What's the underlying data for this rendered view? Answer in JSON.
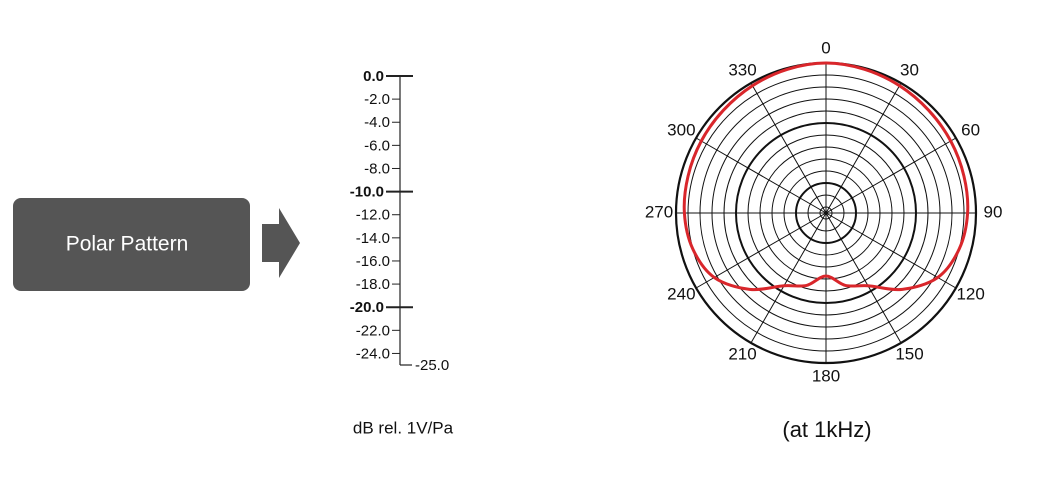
{
  "label": "Polar Pattern",
  "chart_data": {
    "type": "polar",
    "r_label": "dB rel. 1V/Pa",
    "note": "(at 1kHz)",
    "rlim": [
      -25,
      0
    ],
    "rticks": [
      {
        "value": 0,
        "label": "0.0"
      },
      {
        "value": -2,
        "label": "-2.0"
      },
      {
        "value": -4,
        "label": "-4.0"
      },
      {
        "value": -6,
        "label": "-6.0"
      },
      {
        "value": -8,
        "label": "-8.0"
      },
      {
        "value": -10,
        "label": "-10.0"
      },
      {
        "value": -12,
        "label": "-12.0"
      },
      {
        "value": -14,
        "label": "-14.0"
      },
      {
        "value": -16,
        "label": "-16.0"
      },
      {
        "value": -18,
        "label": "-18.0"
      },
      {
        "value": -20,
        "label": "-20.0"
      },
      {
        "value": -22,
        "label": "-22.0"
      },
      {
        "value": -24,
        "label": "-24.0"
      },
      {
        "value": -25,
        "label": "-25.0"
      }
    ],
    "thetaticks": [
      0,
      30,
      60,
      90,
      120,
      150,
      180,
      210,
      240,
      270,
      300,
      330
    ],
    "series": [
      {
        "color": "#d9262b",
        "theta": [
          0,
          15,
          30,
          45,
          60,
          75,
          90,
          105,
          120,
          135,
          150,
          165,
          180,
          195,
          210,
          225,
          240,
          255,
          270,
          285,
          300,
          315,
          330,
          345
        ],
        "values": [
          0,
          -0.2,
          -0.5,
          -0.8,
          -1.0,
          -1.2,
          -1.4,
          -2.0,
          -3.5,
          -7,
          -11,
          -12.5,
          -14.5,
          -12.5,
          -11,
          -7,
          -3.5,
          -2.0,
          -1.4,
          -1.2,
          -1.0,
          -0.8,
          -0.5,
          -0.2
        ]
      }
    ]
  }
}
